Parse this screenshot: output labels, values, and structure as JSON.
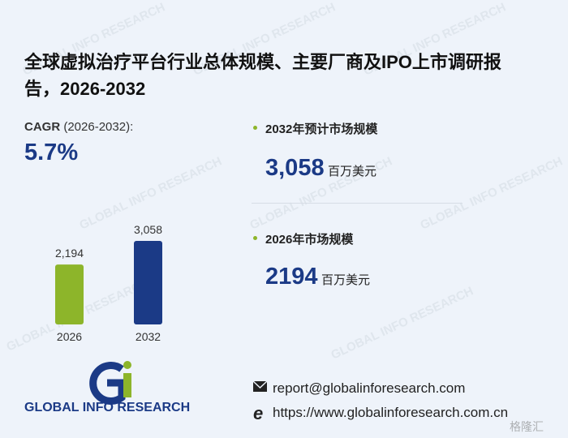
{
  "title": "全球虚拟治疗平台行业总体规模、主要厂商及IPO上市调研报告，2026-2032",
  "cagr": {
    "label": "CAGR",
    "period": "(2026-2032):",
    "value": "5.7%"
  },
  "stats": [
    {
      "label": "2032年预计市场规模",
      "value": "3,058",
      "unit": "百万美元"
    },
    {
      "label": "2026年市场规模",
      "value": "2194",
      "unit": "百万美元"
    }
  ],
  "chart_data": {
    "type": "bar",
    "categories": [
      "2026",
      "2032"
    ],
    "values": [
      2194,
      3058
    ],
    "value_labels": [
      "2,194",
      "3,058"
    ],
    "colors": [
      "#8db52a",
      "#1b3a86"
    ]
  },
  "logo": {
    "name": "GLOBAL INFO RESEARCH"
  },
  "contact": {
    "email": "report@globalinforesearch.com",
    "website": "https://www.globalinforesearch.com.cn"
  },
  "corner_mark": "格隆汇"
}
